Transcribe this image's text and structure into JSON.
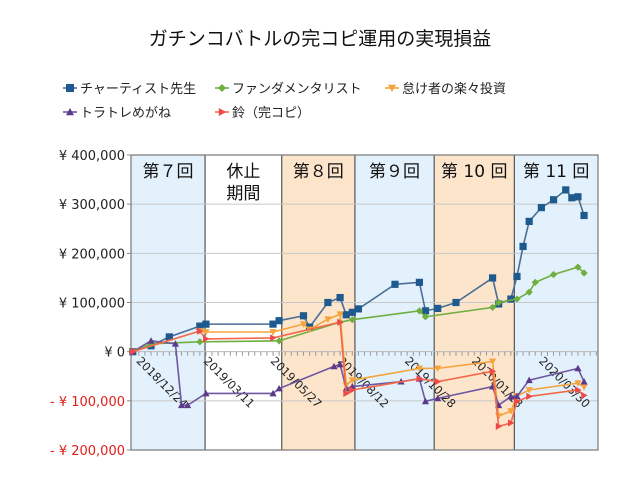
{
  "chart_data": {
    "type": "line",
    "title": "ガチンコバトルの完コピ運用の実現損益",
    "xlim": [
      "2018-12-22",
      "2020-06-10"
    ],
    "ylim": [
      -200000,
      400000
    ],
    "grid": true,
    "legend_position": "top",
    "y_ticks": [
      {
        "value": 400000,
        "label": "¥ 400,000"
      },
      {
        "value": 300000,
        "label": "¥ 300,000"
      },
      {
        "value": 200000,
        "label": "¥ 200,000"
      },
      {
        "value": 100000,
        "label": "¥ 100,000"
      },
      {
        "value": 0,
        "label": "¥ 0"
      },
      {
        "value": -100000,
        "label": "- ¥ 100,000"
      },
      {
        "value": -200000,
        "label": "- ¥ 200,000"
      }
    ],
    "negative_label_color": "#e0201a",
    "x_ticks": [
      "2018/12/24",
      "2019/03/11",
      "2019/05/27",
      "2019/08/12",
      "2019/10/28",
      "2020/01/13",
      "2020/03/30"
    ],
    "bands": [
      {
        "label": "第７回",
        "start": "2018-12-22",
        "end": "2019-03-17",
        "color": "#e3f1fc"
      },
      {
        "label": "休止期間",
        "start": "2019-03-17",
        "end": "2019-06-13",
        "color": "#ffffff"
      },
      {
        "label": "第８回",
        "start": "2019-06-13",
        "end": "2019-09-05",
        "color": "#fde5cc"
      },
      {
        "label": "第９回",
        "start": "2019-09-05",
        "end": "2019-12-05",
        "color": "#e3f1fc"
      },
      {
        "label": "第 10 回",
        "start": "2019-12-05",
        "end": "2020-03-06",
        "color": "#fde5cc"
      },
      {
        "label": "第 11 回",
        "start": "2020-03-06",
        "end": "2020-06-10",
        "color": "#e3f1fc"
      }
    ],
    "series": [
      {
        "name": "チャーティスト先生",
        "color": "#1f5a8f",
        "line_color": "#4a6e96",
        "marker": "square",
        "points": [
          [
            "2018-12-24",
            0
          ],
          [
            "2019-01-14",
            12000
          ],
          [
            "2019-02-04",
            30000
          ],
          [
            "2019-03-11",
            52000
          ],
          [
            "2019-03-18",
            56000
          ],
          [
            "2019-06-03",
            56000
          ],
          [
            "2019-06-10",
            63000
          ],
          [
            "2019-07-08",
            73000
          ],
          [
            "2019-07-15",
            50000
          ],
          [
            "2019-08-05",
            100000
          ],
          [
            "2019-08-19",
            110000
          ],
          [
            "2019-08-26",
            75000
          ],
          [
            "2019-09-02",
            80000
          ],
          [
            "2019-09-09",
            87000
          ],
          [
            "2019-10-21",
            137000
          ],
          [
            "2019-11-18",
            141000
          ],
          [
            "2019-11-25",
            83000
          ],
          [
            "2019-12-09",
            88000
          ],
          [
            "2019-12-30",
            100000
          ],
          [
            "2020-02-10",
            150000
          ],
          [
            "2020-02-17",
            97000
          ],
          [
            "2020-03-02",
            107000
          ],
          [
            "2020-03-09",
            153000
          ],
          [
            "2020-03-16",
            214000
          ],
          [
            "2020-03-23",
            265000
          ],
          [
            "2020-04-06",
            293000
          ],
          [
            "2020-04-20",
            309000
          ],
          [
            "2020-05-04",
            329000
          ],
          [
            "2020-05-11",
            313000
          ],
          [
            "2020-05-18",
            315000
          ],
          [
            "2020-05-25",
            277000
          ]
        ]
      },
      {
        "name": "ファンダメンタリスト",
        "color": "#6fae3f",
        "line_color": "#6fae3f",
        "marker": "diamond",
        "points": [
          [
            "2018-12-24",
            0
          ],
          [
            "2019-01-14",
            16000
          ],
          [
            "2019-03-11",
            20000
          ],
          [
            "2019-06-10",
            22000
          ],
          [
            "2019-08-19",
            60000
          ],
          [
            "2019-09-02",
            65000
          ],
          [
            "2019-11-18",
            83000
          ],
          [
            "2019-11-25",
            71000
          ],
          [
            "2020-02-10",
            90000
          ],
          [
            "2020-02-17",
            100000
          ],
          [
            "2020-03-09",
            107000
          ],
          [
            "2020-03-23",
            121000
          ],
          [
            "2020-03-30",
            141000
          ],
          [
            "2020-04-20",
            157000
          ],
          [
            "2020-05-18",
            172000
          ],
          [
            "2020-05-25",
            160000
          ]
        ]
      },
      {
        "name": "怠け者の楽々投資",
        "color": "#f5a33a",
        "line_color": "#f5a33a",
        "marker": "triangle-down",
        "points": [
          [
            "2018-12-24",
            0
          ],
          [
            "2019-03-11",
            42000
          ],
          [
            "2019-03-18",
            40000
          ],
          [
            "2019-06-03",
            40000
          ],
          [
            "2019-07-08",
            56000
          ],
          [
            "2019-07-15",
            45000
          ],
          [
            "2019-08-05",
            66000
          ],
          [
            "2019-08-19",
            76000
          ],
          [
            "2019-08-26",
            -68000
          ],
          [
            "2019-09-02",
            -58000
          ],
          [
            "2019-11-18",
            -34000
          ],
          [
            "2019-12-09",
            -34000
          ],
          [
            "2020-02-10",
            -20000
          ],
          [
            "2020-02-17",
            -131000
          ],
          [
            "2020-03-02",
            -121000
          ],
          [
            "2020-03-09",
            -90000
          ],
          [
            "2020-03-23",
            -78000
          ],
          [
            "2020-05-18",
            -64000
          ],
          [
            "2020-05-25",
            -72000
          ]
        ]
      },
      {
        "name": "トラトレめがね",
        "color": "#5b3a8c",
        "line_color": "#6e58a0",
        "marker": "triangle-up",
        "points": [
          [
            "2018-12-24",
            0
          ],
          [
            "2019-01-14",
            22000
          ],
          [
            "2019-02-11",
            16000
          ],
          [
            "2019-02-18",
            -109000
          ],
          [
            "2019-02-25",
            -109000
          ],
          [
            "2019-03-18",
            -85000
          ],
          [
            "2019-06-03",
            -85000
          ],
          [
            "2019-06-10",
            -75000
          ],
          [
            "2019-08-12",
            -30000
          ],
          [
            "2019-08-19",
            -26000
          ],
          [
            "2019-08-26",
            -75000
          ],
          [
            "2019-09-02",
            -71000
          ],
          [
            "2019-10-28",
            -61000
          ],
          [
            "2019-11-18",
            -55000
          ],
          [
            "2019-11-25",
            -101000
          ],
          [
            "2019-12-09",
            -95000
          ],
          [
            "2020-02-10",
            -71000
          ],
          [
            "2020-02-17",
            -109000
          ],
          [
            "2020-03-02",
            -91000
          ],
          [
            "2020-03-09",
            -91000
          ],
          [
            "2020-03-23",
            -58000
          ],
          [
            "2020-05-18",
            -34000
          ],
          [
            "2020-05-25",
            -61000
          ]
        ]
      },
      {
        "name": "鈴（完コピ）",
        "color": "#f04848",
        "line_color": "#f26a4a",
        "marker": "triangle-right",
        "points": [
          [
            "2018-12-24",
            0
          ],
          [
            "2019-03-11",
            42000
          ],
          [
            "2019-03-18",
            26000
          ],
          [
            "2019-06-03",
            28000
          ],
          [
            "2019-08-19",
            60000
          ],
          [
            "2019-08-26",
            -85000
          ],
          [
            "2019-09-02",
            -78000
          ],
          [
            "2019-11-18",
            -55000
          ],
          [
            "2019-12-09",
            -61000
          ],
          [
            "2020-02-10",
            -40000
          ],
          [
            "2020-02-17",
            -152000
          ],
          [
            "2020-03-02",
            -145000
          ],
          [
            "2020-03-09",
            -101000
          ],
          [
            "2020-03-23",
            -91000
          ],
          [
            "2020-05-18",
            -78000
          ],
          [
            "2020-05-25",
            -89000
          ]
        ]
      }
    ]
  }
}
